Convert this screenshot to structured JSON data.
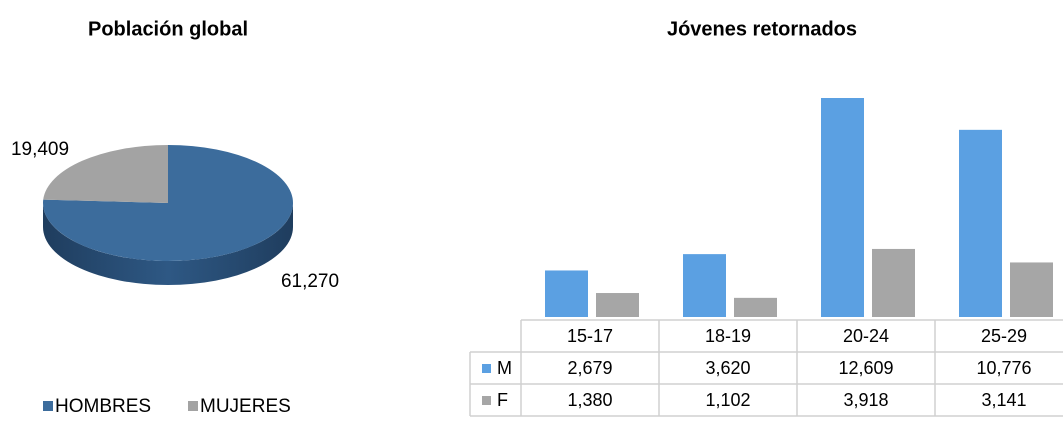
{
  "chart_data": [
    {
      "type": "pie",
      "title": "Población global",
      "categories": [
        "HOMBRES",
        "MUJERES"
      ],
      "values": [
        61270,
        19409
      ],
      "value_labels": [
        "61,270",
        "19,409"
      ],
      "colors": [
        "#3c6c9c",
        "#a3a3a3"
      ]
    },
    {
      "type": "bar",
      "title": "Jóvenes retornados",
      "categories": [
        "15-17",
        "18-19",
        "20-24",
        "25-29"
      ],
      "series": [
        {
          "name": "M",
          "color": "#5ba0e2",
          "values": [
            2679,
            3620,
            12609,
            10776
          ],
          "value_labels": [
            "2,679",
            "3,620",
            "12,609",
            "10,776"
          ]
        },
        {
          "name": "F",
          "color": "#a6a6a6",
          "values": [
            1380,
            1102,
            3918,
            3141
          ],
          "value_labels": [
            "1,380",
            "1,102",
            "3,918",
            "3,141"
          ]
        }
      ]
    }
  ]
}
